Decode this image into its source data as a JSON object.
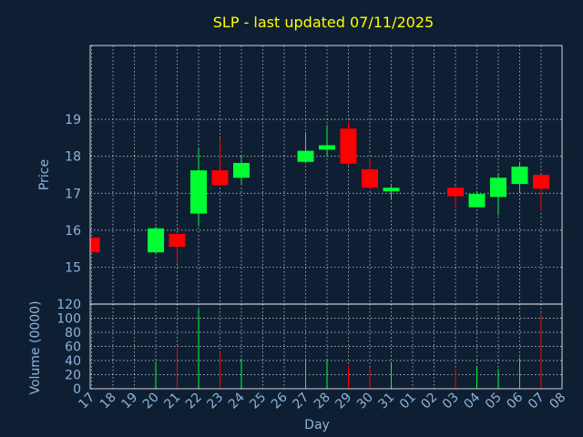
{
  "chart_data": {
    "type": "candlestick",
    "title": "SLP - last updated 07/11/2025",
    "xlabel": "Day",
    "price_ylabel": "Price",
    "volume_ylabel": "Volume (0000)",
    "price_ylim": [
      14,
      21
    ],
    "price_ticks": [
      15,
      16,
      17,
      18,
      19
    ],
    "volume_ylim": [
      0,
      120
    ],
    "volume_ticks": [
      0,
      20,
      40,
      60,
      80,
      100,
      120
    ],
    "x_ticks": [
      "17",
      "18",
      "19",
      "20",
      "21",
      "22",
      "23",
      "24",
      "25",
      "26",
      "27",
      "28",
      "29",
      "30",
      "31",
      "01",
      "02",
      "03",
      "04",
      "05",
      "06",
      "07",
      "08"
    ],
    "grid": true,
    "colors": {
      "up": "#00ff33",
      "down": "#ff0000",
      "background": "#0f1f33",
      "title": "#ffff00",
      "text": "#8db3d9"
    },
    "candles": [
      {
        "day": "17",
        "open": 15.8,
        "high": 15.8,
        "low": 15.4,
        "close": 15.4,
        "volume": 0
      },
      {
        "day": "20",
        "open": 15.4,
        "high": 16.1,
        "low": 15.35,
        "close": 16.05,
        "volume": 38
      },
      {
        "day": "21",
        "open": 15.9,
        "high": 15.9,
        "low": 15.1,
        "close": 15.55,
        "volume": 58
      },
      {
        "day": "22",
        "open": 16.45,
        "high": 18.2,
        "low": 16.1,
        "close": 17.62,
        "volume": 112
      },
      {
        "day": "23",
        "open": 17.62,
        "high": 18.5,
        "low": 17.2,
        "close": 17.22,
        "volume": 52
      },
      {
        "day": "24",
        "open": 17.42,
        "high": 18.0,
        "low": 17.25,
        "close": 17.82,
        "volume": 43
      },
      {
        "day": "27",
        "open": 17.85,
        "high": 18.65,
        "low": 17.85,
        "close": 18.15,
        "volume": 43
      },
      {
        "day": "28",
        "open": 18.18,
        "high": 18.85,
        "low": 18.0,
        "close": 18.3,
        "volume": 42
      },
      {
        "day": "29",
        "open": 18.75,
        "high": 18.95,
        "low": 17.75,
        "close": 17.8,
        "volume": 33
      },
      {
        "day": "30",
        "open": 17.65,
        "high": 17.95,
        "low": 17.1,
        "close": 17.15,
        "volume": 30
      },
      {
        "day": "31",
        "open": 17.05,
        "high": 17.2,
        "low": 16.85,
        "close": 17.15,
        "volume": 38
      },
      {
        "day": "03",
        "open": 17.15,
        "high": 17.2,
        "low": 16.6,
        "close": 16.92,
        "volume": 28
      },
      {
        "day": "04",
        "open": 16.62,
        "high": 17.05,
        "low": 16.62,
        "close": 16.98,
        "volume": 32
      },
      {
        "day": "05",
        "open": 16.9,
        "high": 17.55,
        "low": 16.4,
        "close": 17.42,
        "volume": 28
      },
      {
        "day": "06",
        "open": 17.25,
        "high": 17.85,
        "low": 17.0,
        "close": 17.72,
        "volume": 44
      },
      {
        "day": "07",
        "open": 17.5,
        "high": 17.5,
        "low": 16.5,
        "close": 17.12,
        "volume": 107
      }
    ]
  }
}
